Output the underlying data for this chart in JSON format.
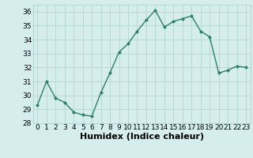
{
  "x": [
    0,
    1,
    2,
    3,
    4,
    5,
    6,
    7,
    8,
    9,
    10,
    11,
    12,
    13,
    14,
    15,
    16,
    17,
    18,
    19,
    20,
    21,
    22,
    23
  ],
  "y": [
    29.3,
    31.0,
    29.8,
    29.5,
    28.8,
    28.6,
    28.5,
    30.2,
    31.6,
    33.1,
    33.7,
    34.6,
    35.4,
    36.1,
    34.9,
    35.3,
    35.5,
    35.7,
    34.6,
    34.2,
    31.6,
    31.8,
    32.1,
    32.0
  ],
  "line_color": "#2e7d6e",
  "marker": "D",
  "marker_size": 2.0,
  "linewidth": 1.0,
  "xlabel": "Humidex (Indice chaleur)",
  "ylabel": "",
  "ylim": [
    28,
    36.5
  ],
  "xlim": [
    -0.5,
    23.5
  ],
  "yticks": [
    28,
    29,
    30,
    31,
    32,
    33,
    34,
    35,
    36
  ],
  "xticks": [
    0,
    1,
    2,
    3,
    4,
    5,
    6,
    7,
    8,
    9,
    10,
    11,
    12,
    13,
    14,
    15,
    16,
    17,
    18,
    19,
    20,
    21,
    22,
    23
  ],
  "xtick_labels": [
    "0",
    "1",
    "2",
    "3",
    "4",
    "5",
    "6",
    "7",
    "8",
    "9",
    "10",
    "11",
    "12",
    "13",
    "14",
    "15",
    "16",
    "17",
    "18",
    "19",
    "20",
    "21",
    "22",
    "23"
  ],
  "bg_color": "#d5eeed",
  "grid_color": "#b8d8d5",
  "tick_fontsize": 6.5,
  "xlabel_fontsize": 8
}
